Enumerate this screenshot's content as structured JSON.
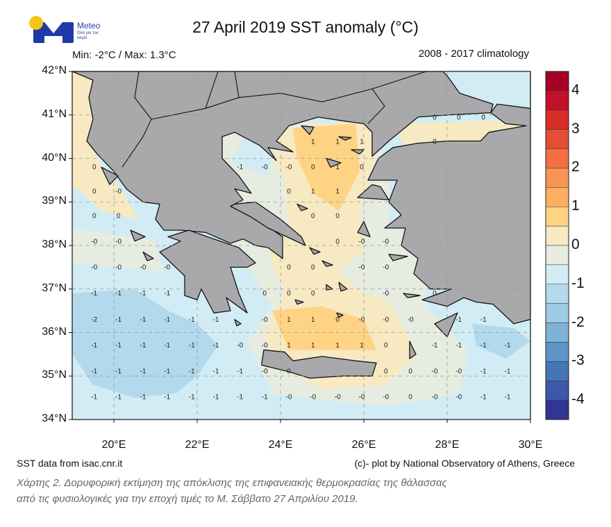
{
  "logo": {
    "name": "Meteo",
    "tagline": "Όλα για τον καιρό",
    "colors": {
      "sun": "#f5c518",
      "mark": "#1f3aa8"
    }
  },
  "header": {
    "title": "27 April 2019 SST anomaly (°C)",
    "minmax": "Min: -2°C / Max: 1.3°C",
    "climatology": "2008 - 2017 climatology"
  },
  "map": {
    "lon_range": [
      19,
      30
    ],
    "lat_range": [
      34,
      42
    ],
    "lat_ticks": [
      "42°N",
      "41°N",
      "40°N",
      "39°N",
      "38°N",
      "37°N",
      "36°N",
      "35°N",
      "34°N"
    ],
    "lon_ticks": [
      "20°E",
      "22°E",
      "24°E",
      "26°E",
      "28°E",
      "30°E"
    ],
    "grid": "dashed",
    "land_color": "#a9a9ab",
    "label_lons": [
      19.53,
      20.11,
      20.7,
      21.28,
      21.87,
      22.45,
      23.03,
      23.62,
      24.2,
      24.78,
      25.37,
      25.95,
      26.53,
      27.12,
      27.7,
      28.28,
      28.87,
      29.45
    ],
    "value_rows": [
      {
        "lat": 40.96,
        "cells": {
          "14": "0",
          "15": "0",
          "16": "0"
        }
      },
      {
        "lat": 40.4,
        "cells": {
          "9": "1",
          "10": "1",
          "11": "1",
          "14": "0"
        }
      },
      {
        "lat": 39.82,
        "cells": {
          "0": "0",
          "6": "-1",
          "7": "-0",
          "8": "-0",
          "9": "0",
          "10": "1",
          "11": "0"
        }
      },
      {
        "lat": 39.26,
        "cells": {
          "0": "0",
          "1": "-0",
          "8": "0",
          "9": "1",
          "10": "1"
        }
      },
      {
        "lat": 38.69,
        "cells": {
          "0": "0",
          "1": "0",
          "9": "0",
          "10": "0"
        }
      },
      {
        "lat": 38.1,
        "cells": {
          "0": "-0",
          "1": "-0",
          "10": "0",
          "11": "-0",
          "12": "-0"
        }
      },
      {
        "lat": 37.51,
        "cells": {
          "0": "-0",
          "1": "-0",
          "2": "-0",
          "3": "-0",
          "8": "0",
          "9": "0",
          "11": "-0",
          "12": "-0"
        }
      },
      {
        "lat": 36.92,
        "cells": {
          "0": "-1",
          "1": "-1",
          "2": "-1",
          "3": "-1",
          "7": "0",
          "8": "0",
          "9": "0",
          "12": "-0",
          "14": "0"
        }
      },
      {
        "lat": 36.31,
        "cells": {
          "0": "-2",
          "1": "-1",
          "2": "-1",
          "3": "-1",
          "4": "-1",
          "5": "-1",
          "7": "-0",
          "8": "1",
          "9": "1",
          "10": "0",
          "11": "-0",
          "12": "-0",
          "13": "-0",
          "15": "-1",
          "16": "-1"
        }
      },
      {
        "lat": 35.72,
        "cells": {
          "0": "-1",
          "1": "-1",
          "2": "-1",
          "3": "-1",
          "4": "-1",
          "5": "-1",
          "6": "-0",
          "7": "-0",
          "8": "1",
          "9": "1",
          "10": "1",
          "11": "1",
          "12": "0",
          "14": "-1",
          "15": "-1",
          "16": "-1",
          "17": "-1"
        }
      },
      {
        "lat": 35.12,
        "cells": {
          "0": "-1",
          "1": "-1",
          "2": "-1",
          "3": "-1",
          "4": "-1",
          "5": "-1",
          "6": "-1",
          "7": "-0",
          "8": "0",
          "12": "0",
          "13": "0",
          "14": "-0",
          "15": "-0",
          "16": "-1",
          "17": "-1"
        }
      },
      {
        "lat": 34.53,
        "cells": {
          "0": "-1",
          "1": "-1",
          "2": "-1",
          "3": "-1",
          "4": "-1",
          "5": "-1",
          "6": "-1",
          "7": "-1",
          "8": "-0",
          "9": "-0",
          "10": "-0",
          "11": "-0",
          "12": "-0",
          "13": "0",
          "14": "-0",
          "15": "-0",
          "16": "-1",
          "17": "-1"
        }
      }
    ]
  },
  "colorbar": {
    "range": [
      -4.5,
      4.5
    ],
    "step": 0.5,
    "labels": [
      "4",
      "3",
      "2",
      "1",
      "0",
      "-1",
      "-2",
      "-3",
      "-4"
    ],
    "colors": [
      "#a50026",
      "#c3112a",
      "#d62f27",
      "#e54e35",
      "#f46d43",
      "#f89553",
      "#fdae61",
      "#fed383",
      "#f7e9c2",
      "#e6ecdf",
      "#d1ecf5",
      "#b3d9ec",
      "#9ccbe3",
      "#7fb2d7",
      "#5e94c6",
      "#4575b4",
      "#3e58a8",
      "#313695"
    ]
  },
  "footer": {
    "source": "SST data from isac.cnr.it",
    "credit": "(c)- plot by National Observatory of Athens, Greece",
    "caption_line1": "Χάρτης 2. Δορυφορική εκτίμηση της απόκλισης της επιφανειακής θερμοκρασίας της θάλασσας",
    "caption_line2": "από τις φυσιολογικές για την εποχή τιμές το Μ. Σάββατο 27 Απριλίου 2019."
  }
}
